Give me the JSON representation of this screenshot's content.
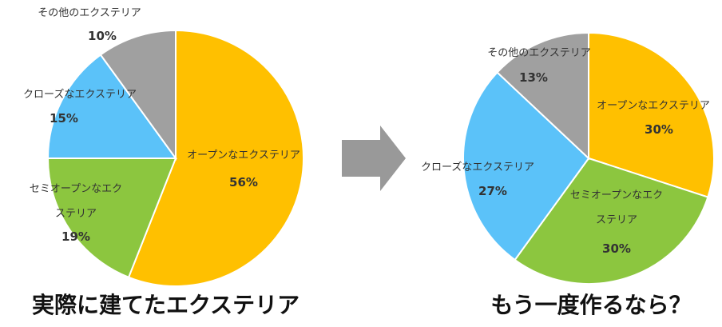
{
  "chart_data": [
    {
      "type": "pie",
      "title": "実際に建てたエクステリア",
      "slices": [
        {
          "label": "オープンなエクステリア",
          "value": 56,
          "display": "56%",
          "color": "#FFC000"
        },
        {
          "label": "セミオープンなエクステリア",
          "value": 19,
          "display": "19%",
          "color": "#8CC63F"
        },
        {
          "label": "クローズなエクステリア",
          "value": 15,
          "display": "15%",
          "color": "#5BC2F9"
        },
        {
          "label": "その他のエクステリア",
          "value": 10,
          "display": "10%",
          "color": "#A0A0A0"
        }
      ]
    },
    {
      "type": "pie",
      "title": "もう一度作るなら？",
      "slices": [
        {
          "label": "オープンなエクステリア",
          "value": 30,
          "display": "30%",
          "color": "#FFC000"
        },
        {
          "label": "セミオープンなエクステリア",
          "value": 30,
          "display": "30%",
          "color": "#8CC63F"
        },
        {
          "label": "クローズなエクステリア",
          "value": 27,
          "display": "27%",
          "color": "#5BC2F9"
        },
        {
          "label": "その他のエクステリア",
          "value": 13,
          "display": "13%",
          "color": "#A0A0A0"
        }
      ]
    }
  ],
  "arrow_color": "#999999"
}
